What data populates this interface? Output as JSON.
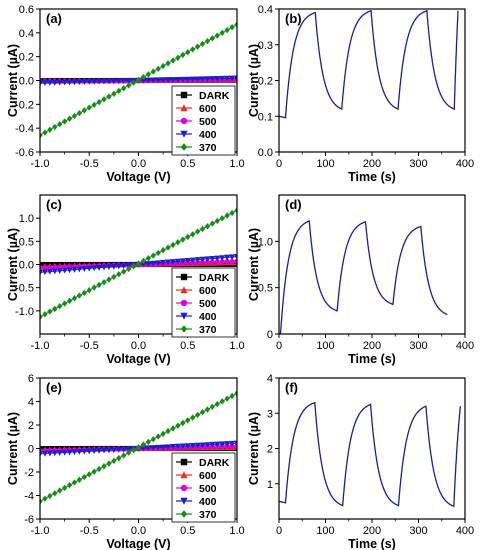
{
  "colors": {
    "dark": "#000000",
    "w600": "#e8312a",
    "w500": "#e100e1",
    "w400": "#1f1fc8",
    "w370": "#1a8a1a",
    "transient": "#1c1c9c"
  },
  "chart_data": [
    {
      "panel": "(a)",
      "type": "line",
      "xlabel": "Voltage (V)",
      "ylabel": "Current (µA)",
      "xlim": [
        -1.0,
        1.0
      ],
      "ylim": [
        -0.6,
        0.6
      ],
      "xticks": [
        -1.0,
        -0.5,
        0.0,
        0.5,
        1.0
      ],
      "xtick_labels": [
        "-1.0",
        "-0.5",
        "0.0",
        "0.5",
        "1.0"
      ],
      "yticks": [
        -0.6,
        -0.4,
        -0.2,
        0.0,
        0.2,
        0.4,
        0.6
      ],
      "ytick_labels": [
        "-0.6",
        "-0.4",
        "-0.2",
        "0.0",
        "0.2",
        "0.4",
        "0.6"
      ],
      "x": [
        -1.0,
        1.0
      ],
      "legend": "bottom-right",
      "series": [
        {
          "name": "DARK",
          "values": [
            -0.002,
            0.002
          ],
          "marker": "square",
          "color": "#000000"
        },
        {
          "name": "600",
          "values": [
            -0.005,
            0.005
          ],
          "marker": "triangle-up",
          "color": "#e8312a"
        },
        {
          "name": "500",
          "values": [
            -0.01,
            0.01
          ],
          "marker": "circle",
          "color": "#e100e1"
        },
        {
          "name": "400",
          "values": [
            -0.02,
            0.02
          ],
          "marker": "triangle-down",
          "color": "#1f1fc8"
        },
        {
          "name": "370",
          "values": [
            -0.46,
            0.47
          ],
          "marker": "diamond",
          "color": "#1a8a1a"
        }
      ]
    },
    {
      "panel": "(b)",
      "type": "line",
      "xlabel": "Time (s)",
      "ylabel": "Current (µA)",
      "xlim": [
        0,
        400
      ],
      "ylim": [
        0.0,
        0.4
      ],
      "xticks": [
        0,
        100,
        200,
        300,
        400
      ],
      "xtick_labels": [
        "0",
        "100",
        "200",
        "300",
        "400"
      ],
      "yticks": [
        0.0,
        0.1,
        0.2,
        0.3,
        0.4
      ],
      "ytick_labels": [
        "0.0",
        "0.1",
        "0.2",
        "0.3",
        "0.4"
      ],
      "on_off": [
        [
          0,
          14,
          "off"
        ],
        [
          14,
          78,
          "on"
        ],
        [
          78,
          135,
          "off"
        ],
        [
          135,
          198,
          "on"
        ],
        [
          198,
          256,
          "off"
        ],
        [
          256,
          318,
          "on"
        ],
        [
          318,
          377,
          "off"
        ],
        [
          377,
          385,
          "on"
        ]
      ],
      "start_value": 0.1,
      "peak_values": [
        0.39,
        0.395,
        0.395
      ],
      "min_values": [
        0.12,
        0.12,
        0.12
      ],
      "series": [
        {
          "values": [
            0.1,
            0.39,
            0.12,
            0.395,
            0.12,
            0.395,
            0.12,
            0.28
          ]
        }
      ]
    },
    {
      "panel": "(c)",
      "type": "line",
      "xlabel": "Voltage (V)",
      "ylabel": "Current (µA)",
      "xlim": [
        -1.0,
        1.0
      ],
      "ylim": [
        -1.5,
        1.5
      ],
      "xticks": [
        -1.0,
        -0.5,
        0.0,
        0.5,
        1.0
      ],
      "xtick_labels": [
        "-1.0",
        "-0.5",
        "0.0",
        "0.5",
        "1.0"
      ],
      "yticks": [
        -1.0,
        -0.5,
        0.0,
        0.5,
        1.0
      ],
      "ytick_labels": [
        "-1.0",
        "-0.5",
        "0.0",
        "0.5",
        "1.0"
      ],
      "x": [
        -1.0,
        1.0
      ],
      "legend": "bottom-right",
      "series": [
        {
          "name": "DARK",
          "values": [
            -0.002,
            0.002
          ],
          "marker": "square",
          "color": "#000000"
        },
        {
          "name": "600",
          "values": [
            -0.04,
            0.04
          ],
          "marker": "triangle-up",
          "color": "#e8312a"
        },
        {
          "name": "500",
          "values": [
            -0.07,
            0.07
          ],
          "marker": "circle",
          "color": "#e100e1"
        },
        {
          "name": "400",
          "values": [
            -0.17,
            0.17
          ],
          "marker": "triangle-down",
          "color": "#1f1fc8"
        },
        {
          "name": "370",
          "values": [
            -1.13,
            1.17
          ],
          "marker": "diamond",
          "color": "#1a8a1a"
        }
      ]
    },
    {
      "panel": "(d)",
      "type": "line",
      "xlabel": "Time (s)",
      "ylabel": "Current (µA)",
      "xlim": [
        0,
        400
      ],
      "ylim": [
        0.0,
        1.5
      ],
      "xticks": [
        0,
        100,
        200,
        300,
        400
      ],
      "xtick_labels": [
        "0",
        "100",
        "200",
        "300",
        "400"
      ],
      "yticks": [
        0.0,
        0.5,
        1.0
      ],
      "ytick_labels": [
        "0",
        "0.5",
        "1.0"
      ],
      "on_off": [
        [
          0,
          3,
          "off"
        ],
        [
          3,
          65,
          "on"
        ],
        [
          65,
          125,
          "off"
        ],
        [
          125,
          186,
          "on"
        ],
        [
          186,
          245,
          "off"
        ],
        [
          245,
          305,
          "on"
        ],
        [
          305,
          362,
          "off"
        ]
      ],
      "start_value": 0.0,
      "peak_values": [
        1.22,
        1.21,
        1.16
      ],
      "min_values": [
        0.25,
        0.32,
        0.21
      ],
      "series": [
        {
          "values": [
            0.0,
            1.22,
            0.25,
            1.21,
            0.32,
            1.16,
            0.21
          ]
        }
      ]
    },
    {
      "panel": "(e)",
      "type": "line",
      "xlabel": "Voltage (V)",
      "ylabel": "Current (µA)",
      "xlim": [
        -1.0,
        1.0
      ],
      "ylim": [
        -6,
        6
      ],
      "xticks": [
        -1.0,
        -0.5,
        0.0,
        0.5,
        1.0
      ],
      "xtick_labels": [
        "-1.0",
        "-0.5",
        "0.0",
        "0.5",
        "1.0"
      ],
      "yticks": [
        -6,
        -4,
        -2,
        0,
        2,
        4,
        6
      ],
      "ytick_labels": [
        "-6",
        "-4",
        "-2",
        "0",
        "2",
        "4",
        "6"
      ],
      "x": [
        -1.0,
        1.0
      ],
      "legend": "bottom-right",
      "series": [
        {
          "name": "DARK",
          "values": [
            -0.01,
            0.01
          ],
          "marker": "square",
          "color": "#000000"
        },
        {
          "name": "600",
          "values": [
            -0.1,
            0.1
          ],
          "marker": "triangle-up",
          "color": "#e8312a"
        },
        {
          "name": "500",
          "values": [
            -0.2,
            0.2
          ],
          "marker": "circle",
          "color": "#e100e1"
        },
        {
          "name": "400",
          "values": [
            -0.45,
            0.45
          ],
          "marker": "triangle-down",
          "color": "#1f1fc8"
        },
        {
          "name": "370",
          "values": [
            -4.5,
            4.7
          ],
          "marker": "diamond",
          "color": "#1a8a1a"
        }
      ]
    },
    {
      "panel": "(f)",
      "type": "line",
      "xlabel": "Time (s)",
      "ylabel": "Current (µA)",
      "xlim": [
        0,
        400
      ],
      "ylim": [
        0,
        4
      ],
      "xticks": [
        0,
        100,
        200,
        300,
        400
      ],
      "xtick_labels": [
        "0",
        "100",
        "200",
        "300",
        "400"
      ],
      "yticks": [
        1,
        2,
        3,
        4
      ],
      "ytick_labels": [
        "1",
        "2",
        "3",
        "4"
      ],
      "on_off": [
        [
          0,
          14,
          "off"
        ],
        [
          14,
          77,
          "on"
        ],
        [
          77,
          137,
          "off"
        ],
        [
          137,
          197,
          "on"
        ],
        [
          197,
          257,
          "off"
        ],
        [
          257,
          316,
          "on"
        ],
        [
          316,
          376,
          "off"
        ],
        [
          376,
          390,
          "on"
        ]
      ],
      "start_value": 0.5,
      "peak_values": [
        3.3,
        3.25,
        3.2
      ],
      "min_values": [
        0.38,
        0.38,
        0.36
      ],
      "series": [
        {
          "values": [
            0.5,
            3.3,
            0.38,
            3.25,
            0.38,
            3.2,
            0.36,
            2.75
          ]
        }
      ]
    }
  ]
}
